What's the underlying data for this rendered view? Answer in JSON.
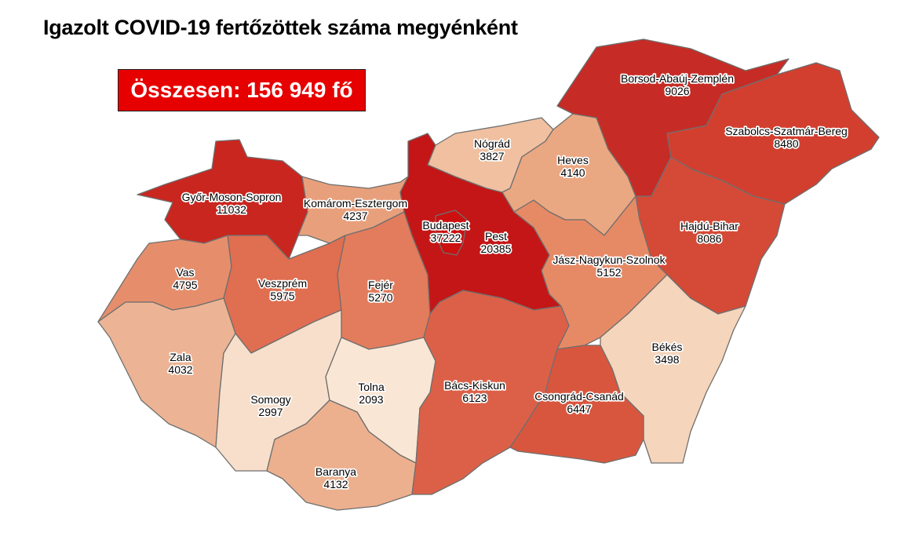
{
  "title": "Igazolt COVID-19 fertőzöttek száma megyénként",
  "total_label": "Összesen: 156 949 fő",
  "total_color": "#e60000",
  "counties": [
    {
      "name": "Győr-Moson-Sopron",
      "value": "11032",
      "color": "#c9261f"
    },
    {
      "name": "Komárom-Esztergom",
      "value": "4237",
      "color": "#e8a07c"
    },
    {
      "name": "Vas",
      "value": "4795",
      "color": "#e68e6c"
    },
    {
      "name": "Veszprém",
      "value": "5975",
      "color": "#e06e50"
    },
    {
      "name": "Fejér",
      "value": "5270",
      "color": "#e37c5c"
    },
    {
      "name": "Zala",
      "value": "4032",
      "color": "#ecb494"
    },
    {
      "name": "Somogy",
      "value": "2997",
      "color": "#f7dfcb"
    },
    {
      "name": "Tolna",
      "value": "2093",
      "color": "#fae6d4"
    },
    {
      "name": "Baranya",
      "value": "4132",
      "color": "#ecb08e"
    },
    {
      "name": "Pest",
      "value": "20385",
      "color": "#c41616"
    },
    {
      "name": "Budapest",
      "value": "37222",
      "color": "#cc1010"
    },
    {
      "name": "Bács-Kiskun",
      "value": "6123",
      "color": "#dc6048"
    },
    {
      "name": "Nógrád",
      "value": "3827",
      "color": "#f0c0a0"
    },
    {
      "name": "Heves",
      "value": "4140",
      "color": "#eaa882"
    },
    {
      "name": "Borsod-Abaúj-Zemplén",
      "value": "9026",
      "color": "#c62c25"
    },
    {
      "name": "Szabolcs-Szatmár-Bereg",
      "value": "8480",
      "color": "#d23f2f"
    },
    {
      "name": "Hajdú-Bihar",
      "value": "8086",
      "color": "#d44a36"
    },
    {
      "name": "Jász-Nagykun-Szolnok",
      "value": "5152",
      "color": "#e68a66"
    },
    {
      "name": "Békés",
      "value": "3498",
      "color": "#f5d5bb"
    },
    {
      "name": "Csongrád-Csanád",
      "value": "6447",
      "color": "#d9563e"
    }
  ]
}
